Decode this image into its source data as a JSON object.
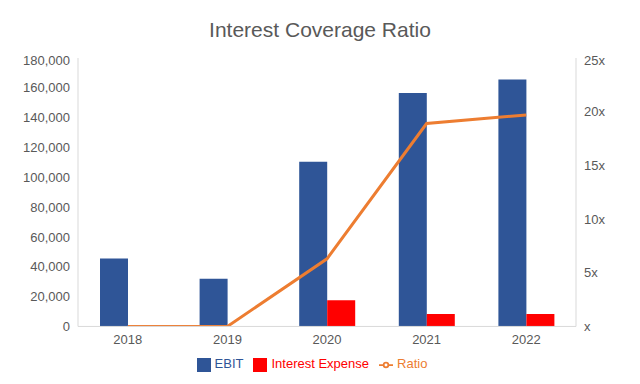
{
  "chart_data": {
    "type": "bar",
    "title": "Interest Coverage Ratio",
    "categories": [
      "2018",
      "2019",
      "2020",
      "2021",
      "2022"
    ],
    "series": [
      {
        "name": "EBIT",
        "type": "bar",
        "color": "#2F5597",
        "values": [
          45500,
          32000,
          110500,
          156500,
          165500
        ]
      },
      {
        "name": "Interest Expense",
        "type": "bar",
        "color": "#FF0000",
        "values": [
          0,
          0,
          17500,
          8300,
          8400
        ]
      },
      {
        "name": "Ratio",
        "type": "line",
        "axis": "y2",
        "color": "#ED7D31",
        "marker": "none",
        "line_style": "solid",
        "values": [
          0,
          0,
          6.3,
          18.9,
          19.7
        ]
      }
    ],
    "ylim": [
      0,
      180000
    ],
    "yticks": [
      0,
      {
        "value": 20000,
        "label": "20,000"
      },
      {
        "value": 40000,
        "label": "40,000"
      },
      {
        "value": 60000,
        "label": "60,000"
      },
      {
        "value": 80000,
        "label": "80,000"
      },
      {
        "value": 100000,
        "label": "100,000"
      },
      {
        "value": 120000,
        "label": "120,000"
      },
      {
        "value": 140000,
        "label": "140,000"
      },
      {
        "value": 160000,
        "label": "160,000"
      },
      {
        "value": 180000,
        "label": "180,000"
      }
    ],
    "y2lim": [
      0,
      25
    ],
    "y2ticks": [
      {
        "value": 0,
        "label": "x"
      },
      {
        "value": 5,
        "label": "5x"
      },
      {
        "value": 10,
        "label": "10x"
      },
      {
        "value": 15,
        "label": "15x"
      },
      {
        "value": 20,
        "label": "20x"
      },
      {
        "value": 25,
        "label": "25x"
      }
    ],
    "grid": false,
    "legend": "bottom"
  }
}
